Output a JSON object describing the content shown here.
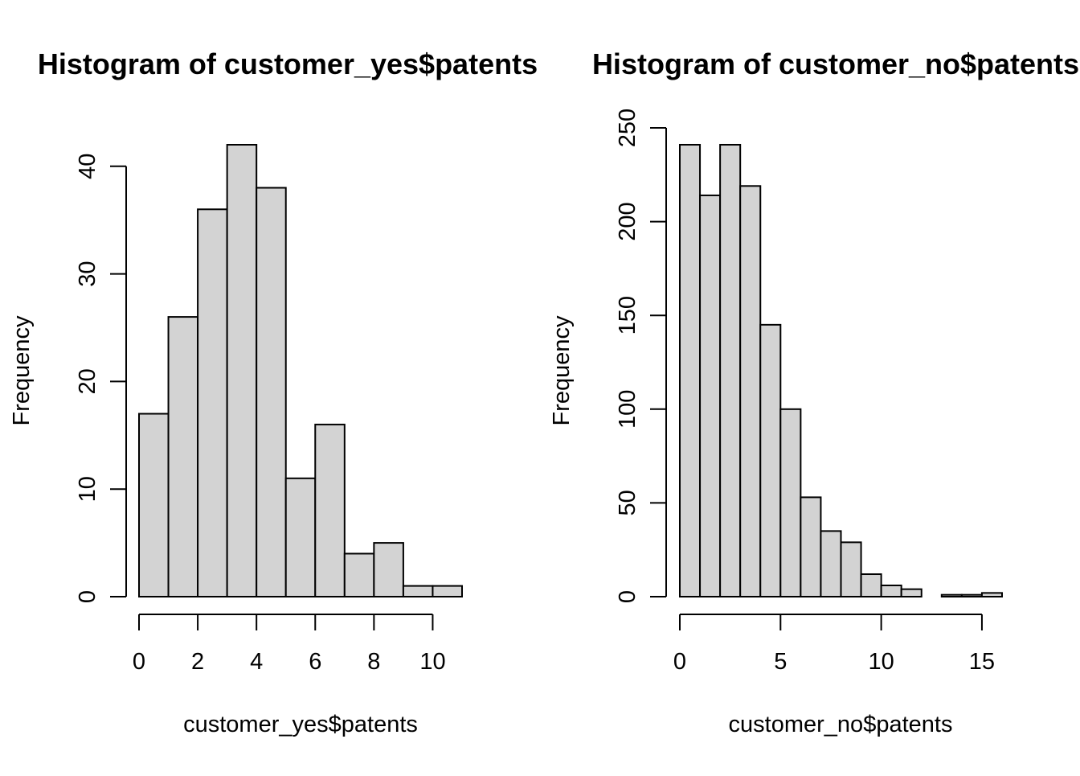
{
  "chart_data": [
    {
      "type": "bar",
      "title": "Histogram of customer_yes$patents",
      "xlabel": "customer_yes$patents",
      "ylabel": "Frequency",
      "bin_edges": [
        0,
        1,
        2,
        3,
        4,
        5,
        6,
        7,
        8,
        9,
        10,
        11
      ],
      "values": [
        17,
        26,
        36,
        42,
        38,
        11,
        16,
        4,
        5,
        1,
        1
      ],
      "xlim": [
        0,
        11
      ],
      "ylim": [
        0,
        42
      ],
      "x_ticks": [
        0,
        2,
        4,
        6,
        8,
        10
      ],
      "y_ticks": [
        0,
        10,
        20,
        30,
        40
      ],
      "bar_color": "#d3d3d3",
      "grid": false
    },
    {
      "type": "bar",
      "title": "Histogram of customer_no$patents",
      "xlabel": "customer_no$patents",
      "ylabel": "Frequency",
      "bin_edges": [
        0,
        1,
        2,
        3,
        4,
        5,
        6,
        7,
        8,
        9,
        10,
        11,
        12,
        13,
        14,
        15,
        16
      ],
      "values": [
        241,
        214,
        241,
        219,
        145,
        100,
        53,
        35,
        29,
        12,
        6,
        4,
        0,
        1,
        1,
        2
      ],
      "xlim": [
        0,
        16
      ],
      "ylim": [
        0,
        250
      ],
      "x_ticks": [
        0,
        5,
        10,
        15
      ],
      "y_ticks": [
        0,
        50,
        100,
        150,
        200,
        250
      ],
      "bar_color": "#d3d3d3",
      "grid": false
    }
  ]
}
